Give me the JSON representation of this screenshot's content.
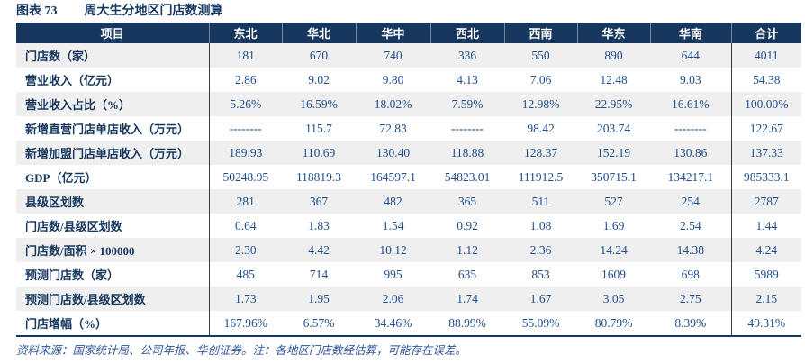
{
  "title": {
    "figure_label": "图表 73",
    "text": "周大生分地区门店数测算"
  },
  "footnote": "资料来源：国家统计局、公司年报、华创证券。注：各地区门店数经估算，可能存在误差。",
  "colors": {
    "header_bg": "#17375E",
    "header_text": "#FFFFFF",
    "label_text": "#17375E",
    "value_text": "#1F4E8C",
    "zebra_row_bg": "#EFEFEF",
    "border_dark": "#17375E"
  },
  "chart_data": {
    "type": "table",
    "title": "周大生分地区门店数测算",
    "columns": [
      "项目",
      "东北",
      "华北",
      "华中",
      "西北",
      "西南",
      "华东",
      "华南",
      "合计"
    ],
    "rows": [
      {
        "label": "门店数（家）",
        "values": [
          "181",
          "670",
          "740",
          "336",
          "550",
          "890",
          "644",
          "4011"
        ]
      },
      {
        "label": "营业收入（亿元）",
        "values": [
          "2.86",
          "9.02",
          "9.80",
          "4.13",
          "7.06",
          "12.48",
          "9.03",
          "54.38"
        ]
      },
      {
        "label": "营业收入占比（%）",
        "values": [
          "5.26%",
          "16.59%",
          "18.02%",
          "7.59%",
          "12.98%",
          "22.95%",
          "16.61%",
          "100.00%"
        ]
      },
      {
        "label": "新增直营门店单店收入（万元）",
        "values": [
          "--------",
          "115.7",
          "72.83",
          "--------",
          "98.42",
          "203.74",
          "--------",
          "122.67"
        ]
      },
      {
        "label": "新增加盟门店单店收入（万元）",
        "values": [
          "189.93",
          "110.69",
          "130.40",
          "118.88",
          "128.37",
          "152.19",
          "130.86",
          "137.33"
        ]
      },
      {
        "label": "GDP（亿元）",
        "values": [
          "50248.95",
          "118819.3",
          "164597.1",
          "54823.01",
          "111912.5",
          "350715.1",
          "134217.1",
          "985333.1"
        ]
      },
      {
        "label": "县级区划数",
        "values": [
          "281",
          "367",
          "482",
          "365",
          "511",
          "527",
          "254",
          "2787"
        ]
      },
      {
        "label": "门店数/县级区划数",
        "values": [
          "0.64",
          "1.83",
          "1.54",
          "0.92",
          "1.08",
          "1.69",
          "2.54",
          "1.44"
        ]
      },
      {
        "label": "门店数/面积 × 100000",
        "values": [
          "2.30",
          "4.42",
          "10.12",
          "1.12",
          "2.36",
          "14.24",
          "14.38",
          "4.24"
        ]
      },
      {
        "label": "预测门店数（家）",
        "values": [
          "485",
          "714",
          "995",
          "635",
          "853",
          "1609",
          "698",
          "5989"
        ]
      },
      {
        "label": "预测门店数/县级区划数",
        "values": [
          "1.73",
          "1.95",
          "2.06",
          "1.74",
          "1.67",
          "3.05",
          "2.75",
          "2.15"
        ]
      },
      {
        "label": "门店增幅（%）",
        "values": [
          "167.96%",
          "6.57%",
          "34.46%",
          "88.99%",
          "55.09%",
          "80.79%",
          "8.39%",
          "49.31%"
        ]
      }
    ]
  }
}
